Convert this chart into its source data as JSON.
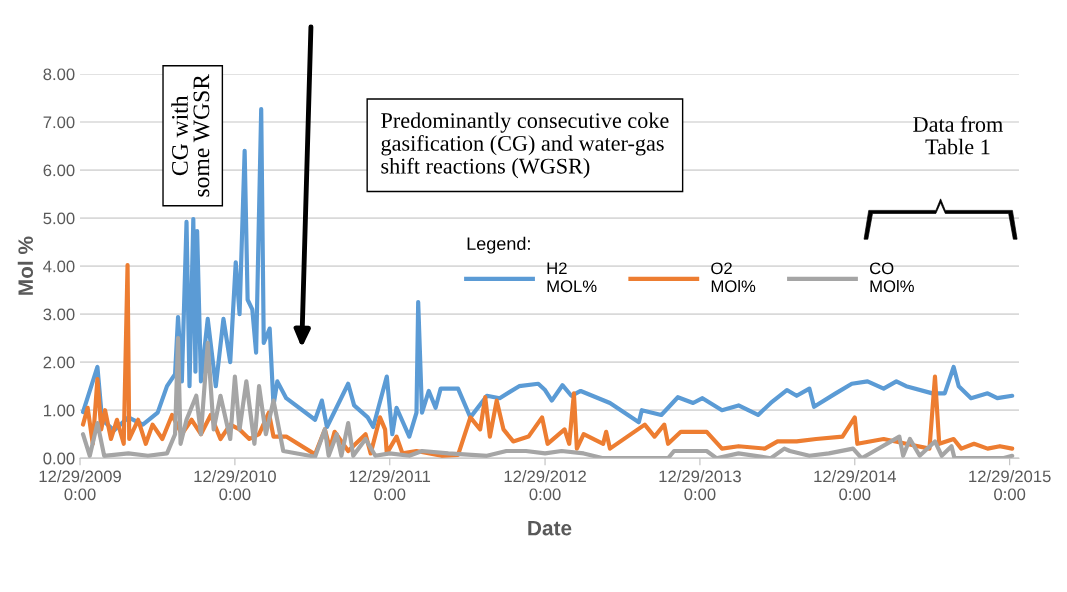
{
  "chart_data": {
    "type": "line",
    "xlabel": "Date",
    "ylabel": "Mol %",
    "legend_title": "Legend:",
    "legend": "center",
    "grid": "y",
    "marker": "none",
    "line_style": "solid",
    "xlim": [
      "2009-12-29",
      "2016-01-20"
    ],
    "ylim": [
      0,
      8
    ],
    "xticks": [
      {
        "value": "2009-12-29",
        "label": "12/29/2009\n0:00"
      },
      {
        "value": "2010-12-29",
        "label": "12/29/2010\n0:00"
      },
      {
        "value": "2011-12-29",
        "label": "12/29/2011\n0:00"
      },
      {
        "value": "2012-12-29",
        "label": "12/29/2012\n0:00"
      },
      {
        "value": "2013-12-29",
        "label": "12/29/2013\n0:00"
      },
      {
        "value": "2014-12-29",
        "label": "12/29/2014\n0:00"
      },
      {
        "value": "2015-12-29",
        "label": "12/29/2015\n0:00"
      }
    ],
    "yticks": [
      {
        "value": 0,
        "label": "0.00"
      },
      {
        "value": 1,
        "label": "1.00"
      },
      {
        "value": 2,
        "label": "2.00"
      },
      {
        "value": 3,
        "label": "3.00"
      },
      {
        "value": 4,
        "label": "4.00"
      },
      {
        "value": 5,
        "label": "5.00"
      },
      {
        "value": 6,
        "label": "6.00"
      },
      {
        "value": 7,
        "label": "7.00"
      },
      {
        "value": 8,
        "label": "8.00"
      }
    ],
    "annotations": [
      "CG with\nsome WGSR",
      "Predominantly consecutive coke\ngasification (CG) and water-gas\nshift reactions (WGSR)",
      "Data from\nTable 1"
    ],
    "series": [
      {
        "name": "H2\nMOL%",
        "color": "#5b9bd5",
        "x": [
          "2010-01-05",
          "2010-02-08",
          "2010-02-19",
          "2010-03-19",
          "2010-04-22",
          "2010-05-26",
          "2010-06-30",
          "2010-07-22",
          "2010-08-10",
          "2010-08-17",
          "2010-08-26",
          "2010-09-06",
          "2010-09-13",
          "2010-09-22",
          "2010-09-27",
          "2010-10-01",
          "2010-10-10",
          "2010-10-26",
          "2010-11-14",
          "2010-12-02",
          "2010-12-18",
          "2010-12-31",
          "2011-01-09",
          "2011-01-21",
          "2011-01-28",
          "2011-02-08",
          "2011-02-17",
          "2011-03-01",
          "2011-03-07",
          "2011-03-21",
          "2011-03-30",
          "2011-04-08",
          "2011-04-29",
          "2011-07-06",
          "2011-07-22",
          "2011-08-03",
          "2011-09-22",
          "2011-10-06",
          "2011-11-07",
          "2011-11-20",
          "2011-12-22",
          "2012-01-04",
          "2012-01-14",
          "2012-02-13",
          "2012-03-01",
          "2012-03-05",
          "2012-03-14",
          "2012-03-30",
          "2012-04-15",
          "2012-04-27",
          "2012-06-07",
          "2012-07-06",
          "2012-08-14",
          "2012-09-13",
          "2012-10-29",
          "2012-12-13",
          "2012-12-29",
          "2013-01-14",
          "2013-02-08",
          "2013-03-01",
          "2013-03-23",
          "2013-05-31",
          "2013-08-07",
          "2013-08-14",
          "2013-09-29",
          "2013-11-07",
          "2013-12-13",
          "2014-01-04",
          "2014-02-19",
          "2014-03-30",
          "2014-05-15",
          "2014-06-14",
          "2014-07-22",
          "2014-08-14",
          "2014-09-13",
          "2014-09-24",
          "2014-11-14",
          "2014-12-22",
          "2015-01-28",
          "2015-03-07",
          "2015-04-06",
          "2015-04-29",
          "2015-06-30",
          "2015-07-29",
          "2015-08-19",
          "2015-08-31",
          "2015-09-29",
          "2015-11-07",
          "2015-11-30",
          "2016-01-04"
        ],
        "values": [
          0.96,
          1.9,
          0.8,
          0.58,
          0.85,
          0.7,
          0.95,
          1.5,
          1.75,
          2.94,
          1.6,
          4.92,
          1.5,
          4.98,
          1.8,
          4.73,
          1.6,
          2.9,
          1.5,
          2.9,
          2.0,
          4.08,
          3.0,
          6.4,
          3.3,
          3.1,
          2.2,
          7.27,
          2.4,
          2.7,
          1.1,
          1.6,
          1.25,
          0.8,
          1.2,
          0.65,
          1.55,
          1.1,
          0.85,
          0.65,
          1.7,
          0.5,
          1.05,
          0.45,
          0.95,
          3.25,
          0.95,
          1.4,
          1.05,
          1.45,
          1.45,
          0.85,
          1.3,
          1.25,
          1.5,
          1.55,
          1.42,
          1.2,
          1.52,
          1.3,
          1.4,
          1.15,
          0.75,
          1.0,
          0.9,
          1.27,
          1.15,
          1.25,
          1.0,
          1.1,
          0.9,
          1.15,
          1.42,
          1.3,
          1.45,
          1.07,
          1.35,
          1.55,
          1.6,
          1.45,
          1.6,
          1.5,
          1.35,
          1.35,
          1.9,
          1.5,
          1.25,
          1.35,
          1.25,
          1.3
        ]
      },
      {
        "name": "O2\nMOl%",
        "color": "#ed7d31",
        "x": [
          "2010-01-05",
          "2010-01-16",
          "2010-01-28",
          "2010-02-08",
          "2010-02-17",
          "2010-02-26",
          "2010-03-12",
          "2010-03-26",
          "2010-04-11",
          "2010-04-20",
          "2010-04-24",
          "2010-05-15",
          "2010-06-02",
          "2010-06-18",
          "2010-07-11",
          "2010-08-03",
          "2010-08-26",
          "2010-09-18",
          "2010-10-10",
          "2010-11-02",
          "2010-11-25",
          "2010-12-18",
          "2011-01-09",
          "2011-02-01",
          "2011-02-24",
          "2011-03-19",
          "2011-03-30",
          "2011-04-29",
          "2011-07-06",
          "2011-07-29",
          "2011-08-10",
          "2011-08-21",
          "2011-09-22",
          "2011-11-02",
          "2011-11-14",
          "2011-12-06",
          "2011-12-18",
          "2011-12-22",
          "2012-01-14",
          "2012-01-28",
          "2012-03-01",
          "2012-04-29",
          "2012-06-07",
          "2012-07-06",
          "2012-07-29",
          "2012-08-10",
          "2012-08-21",
          "2012-09-06",
          "2012-09-22",
          "2012-10-15",
          "2012-11-20",
          "2012-12-22",
          "2013-01-04",
          "2013-02-13",
          "2013-02-24",
          "2013-03-07",
          "2013-03-14",
          "2013-03-30",
          "2013-05-15",
          "2013-05-22",
          "2013-05-31",
          "2013-08-21",
          "2013-09-13",
          "2013-10-06",
          "2013-10-15",
          "2013-11-14",
          "2014-01-14",
          "2014-02-19",
          "2014-03-30",
          "2014-05-31",
          "2014-06-30",
          "2014-08-14",
          "2014-09-29",
          "2014-11-30",
          "2014-12-29",
          "2015-01-04",
          "2015-03-07",
          "2015-04-29",
          "2015-06-23",
          "2015-07-06",
          "2015-07-16",
          "2015-08-19",
          "2015-09-06",
          "2015-10-06",
          "2015-11-07",
          "2015-12-06",
          "2016-01-04"
        ],
        "values": [
          0.7,
          1.05,
          0.3,
          1.65,
          0.6,
          1.0,
          0.4,
          0.8,
          0.3,
          4.02,
          0.4,
          0.8,
          0.3,
          0.7,
          0.4,
          0.9,
          0.5,
          0.8,
          0.5,
          0.9,
          0.4,
          0.7,
          0.6,
          0.4,
          0.5,
          0.95,
          0.45,
          0.45,
          0.08,
          0.6,
          0.2,
          0.55,
          0.15,
          0.5,
          0.1,
          0.85,
          0.6,
          0.1,
          0.45,
          0.1,
          0.15,
          0.05,
          0.07,
          0.85,
          0.6,
          1.27,
          0.45,
          1.2,
          0.6,
          0.35,
          0.45,
          0.85,
          0.3,
          0.6,
          0.3,
          1.35,
          0.2,
          0.5,
          0.3,
          0.55,
          0.2,
          0.7,
          0.45,
          0.7,
          0.3,
          0.55,
          0.55,
          0.2,
          0.25,
          0.2,
          0.35,
          0.35,
          0.4,
          0.45,
          0.85,
          0.3,
          0.4,
          0.3,
          0.2,
          1.7,
          0.3,
          0.4,
          0.2,
          0.3,
          0.2,
          0.25,
          0.2
        ]
      },
      {
        "name": "CO\nMOl%",
        "color": "#a5a5a5",
        "x": [
          "2010-01-05",
          "2010-01-21",
          "2010-02-08",
          "2010-02-24",
          "2010-04-22",
          "2010-06-07",
          "2010-07-22",
          "2010-08-10",
          "2010-08-17",
          "2010-08-23",
          "2010-09-06",
          "2010-09-29",
          "2010-10-10",
          "2010-10-26",
          "2010-11-09",
          "2010-11-25",
          "2010-12-18",
          "2010-12-29",
          "2011-01-09",
          "2011-01-25",
          "2011-02-13",
          "2011-02-24",
          "2011-03-12",
          "2011-03-30",
          "2011-04-22",
          "2011-07-06",
          "2011-07-29",
          "2011-08-07",
          "2011-08-26",
          "2011-09-06",
          "2011-09-22",
          "2011-10-04",
          "2011-11-02",
          "2011-11-25",
          "2011-12-29",
          "2012-02-13",
          "2012-03-14",
          "2012-05-15",
          "2012-08-14",
          "2012-09-29",
          "2012-11-14",
          "2012-12-29",
          "2013-02-06",
          "2013-03-30",
          "2013-05-15",
          "2013-10-15",
          "2013-10-29",
          "2014-01-14",
          "2014-02-06",
          "2014-03-30",
          "2014-06-14",
          "2014-07-16",
          "2014-07-29",
          "2014-09-13",
          "2014-10-29",
          "2014-12-25",
          "2015-01-14",
          "2015-02-13",
          "2015-04-13",
          "2015-04-22",
          "2015-05-08",
          "2015-05-31",
          "2015-07-06",
          "2015-07-22",
          "2015-08-14",
          "2015-08-21",
          "2015-12-13",
          "2016-01-04"
        ],
        "values": [
          0.5,
          0.05,
          0.73,
          0.05,
          0.1,
          0.05,
          0.1,
          0.5,
          2.5,
          0.3,
          0.8,
          1.3,
          0.5,
          2.4,
          0.6,
          1.3,
          0.4,
          1.7,
          0.6,
          1.6,
          0.3,
          1.5,
          0.5,
          1.2,
          0.15,
          0.03,
          0.6,
          0.05,
          0.5,
          0.05,
          0.73,
          0.05,
          0.4,
          0.05,
          0.1,
          0.05,
          0.15,
          0.1,
          0.05,
          0.15,
          0.15,
          0.1,
          0.15,
          0.1,
          0.0,
          0.0,
          0.15,
          0.15,
          0.0,
          0.1,
          0.0,
          0.2,
          0.15,
          0.05,
          0.1,
          0.2,
          0.0,
          0.15,
          0.45,
          0.05,
          0.4,
          0.05,
          0.35,
          0.05,
          0.25,
          0.0,
          0.0,
          0.05
        ]
      }
    ]
  }
}
